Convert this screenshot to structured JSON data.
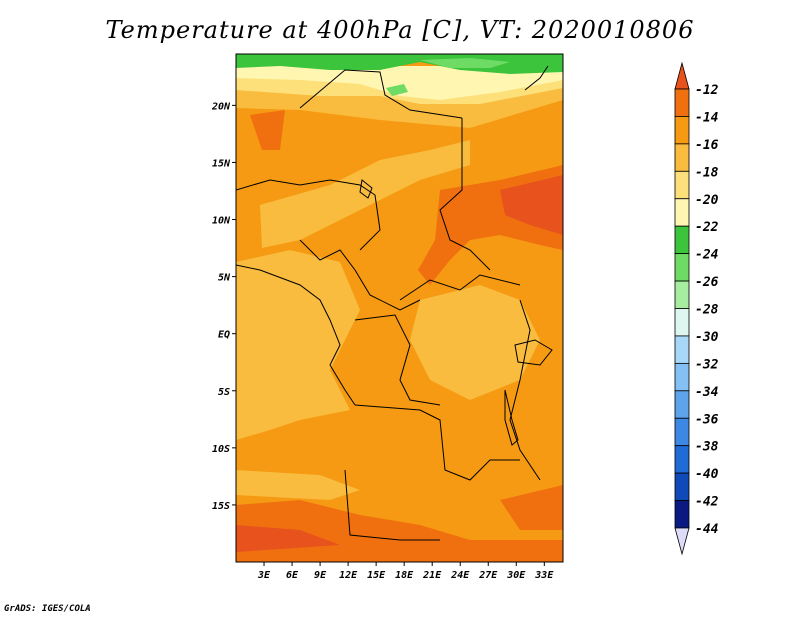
{
  "title": "Temperature at 400hPa [C], VT: 2020010806",
  "credit": "GrADS: IGES/COLA",
  "map": {
    "lon_range": [
      0,
      35
    ],
    "lat_range": [
      -20,
      24.5
    ],
    "lon_ticks": [
      "3E",
      "6E",
      "9E",
      "12E",
      "15E",
      "18E",
      "21E",
      "24E",
      "27E",
      "30E",
      "33E"
    ],
    "lon_tick_values": [
      3,
      6,
      9,
      12,
      15,
      18,
      21,
      24,
      27,
      30,
      33
    ],
    "lat_ticks": [
      "20N",
      "15N",
      "10N",
      "5N",
      "EQ",
      "5S",
      "10S",
      "15S"
    ],
    "lat_tick_values": [
      20,
      15,
      10,
      5,
      0,
      -5,
      -10,
      -15
    ]
  },
  "colorbar": {
    "labels": [
      "-12",
      "-14",
      "-16",
      "-18",
      "-20",
      "-22",
      "-24",
      "-26",
      "-28",
      "-30",
      "-32",
      "-34",
      "-36",
      "-38",
      "-40",
      "-42",
      "-44"
    ],
    "colors": [
      "#e8521c",
      "#f07010",
      "#f59a12",
      "#f9bc3e",
      "#fde07a",
      "#fff6b2",
      "#3cc43c",
      "#6edc64",
      "#a6eda0",
      "#ddf7f0",
      "#a8d8f8",
      "#84c0f4",
      "#5ea4ec",
      "#3c88e4",
      "#1f6bd8",
      "#104ab8",
      "#0a1a80"
    ],
    "over_color": "#e8521c",
    "under_color": "#dcdcf8"
  }
}
